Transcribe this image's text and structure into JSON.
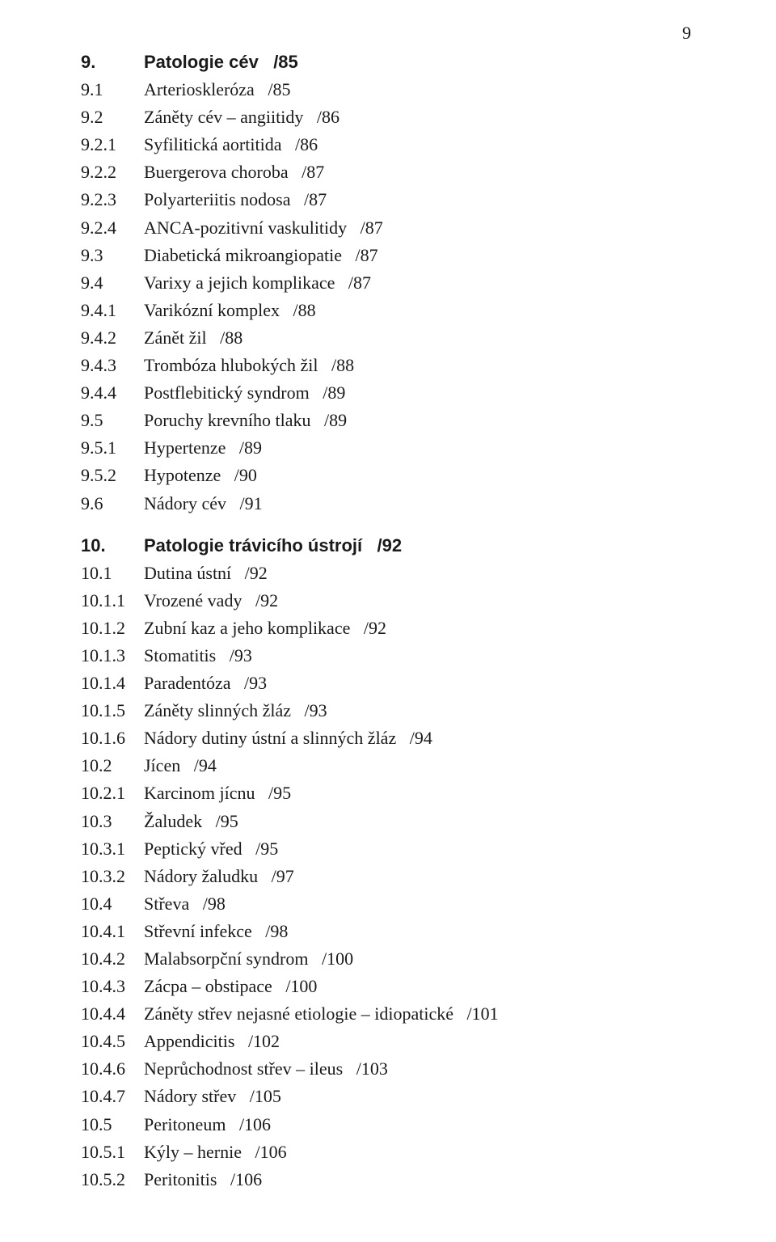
{
  "page_number": "9",
  "entries": [
    {
      "num": "9.",
      "title": "Patologie cév",
      "page": "/85",
      "bold": true
    },
    {
      "num": "9.1",
      "title": "Arterioskleróza",
      "page": "/85"
    },
    {
      "num": "9.2",
      "title": "Záněty cév – angiitidy",
      "page": "/86"
    },
    {
      "num": "9.2.1",
      "title": "Syfilitická aortitida",
      "page": "/86"
    },
    {
      "num": "9.2.2",
      "title": "Buergerova choroba",
      "page": "/87"
    },
    {
      "num": "9.2.3",
      "title": "Polyarteriitis nodosa",
      "page": "/87"
    },
    {
      "num": "9.2.4",
      "title": "ANCA-pozitivní vaskulitidy",
      "page": "/87"
    },
    {
      "num": "9.3",
      "title": "Diabetická mikroangiopatie",
      "page": "/87"
    },
    {
      "num": "9.4",
      "title": "Varixy a jejich komplikace",
      "page": "/87"
    },
    {
      "num": "9.4.1",
      "title": "Varikózní komplex",
      "page": "/88"
    },
    {
      "num": "9.4.2",
      "title": "Zánět žil",
      "page": "/88"
    },
    {
      "num": "9.4.3",
      "title": "Trombóza hlubokých žil",
      "page": "/88"
    },
    {
      "num": "9.4.4",
      "title": "Postflebitický syndrom",
      "page": "/89"
    },
    {
      "num": "9.5",
      "title": "Poruchy krevního tlaku",
      "page": "/89"
    },
    {
      "num": "9.5.1",
      "title": "Hypertenze",
      "page": "/89"
    },
    {
      "num": "9.5.2",
      "title": "Hypotenze",
      "page": "/90"
    },
    {
      "num": "9.6",
      "title": "Nádory cév",
      "page": "/91"
    },
    {
      "gap": true
    },
    {
      "num": "10.",
      "title": "Patologie trávicího ústrojí",
      "page": "/92",
      "bold": true
    },
    {
      "num": "10.1",
      "title": "Dutina ústní",
      "page": "/92"
    },
    {
      "num": "10.1.1",
      "title": "Vrozené vady",
      "page": "/92"
    },
    {
      "num": "10.1.2",
      "title": "Zubní kaz a jeho komplikace",
      "page": "/92"
    },
    {
      "num": "10.1.3",
      "title": "Stomatitis",
      "page": "/93"
    },
    {
      "num": "10.1.4",
      "title": "Paradentóza",
      "page": "/93"
    },
    {
      "num": "10.1.5",
      "title": "Záněty slinných žláz",
      "page": "/93"
    },
    {
      "num": "10.1.6",
      "title": "Nádory dutiny ústní a slinných žláz",
      "page": "/94"
    },
    {
      "num": "10.2",
      "title": "Jícen",
      "page": "/94"
    },
    {
      "num": "10.2.1",
      "title": "Karcinom jícnu",
      "page": "/95"
    },
    {
      "num": "10.3",
      "title": "Žaludek",
      "page": "/95"
    },
    {
      "num": "10.3.1",
      "title": "Peptický vřed",
      "page": "/95"
    },
    {
      "num": "10.3.2",
      "title": "Nádory žaludku",
      "page": "/97"
    },
    {
      "num": "10.4",
      "title": "Střeva",
      "page": "/98"
    },
    {
      "num": "10.4.1",
      "title": "Střevní infekce",
      "page": "/98"
    },
    {
      "num": "10.4.2",
      "title": "Malabsorpční syndrom",
      "page": "/100"
    },
    {
      "num": "10.4.3",
      "title": "Zácpa – obstipace",
      "page": "/100"
    },
    {
      "num": "10.4.4",
      "title": "Záněty střev nejasné etiologie – idiopatické",
      "page": "/101"
    },
    {
      "num": "10.4.5",
      "title": "Appendicitis",
      "page": "/102"
    },
    {
      "num": "10.4.6",
      "title": "Neprůchodnost střev – ileus",
      "page": "/103"
    },
    {
      "num": "10.4.7",
      "title": "Nádory střev",
      "page": "/105"
    },
    {
      "num": "10.5",
      "title": "Peritoneum",
      "page": "/106"
    },
    {
      "num": "10.5.1",
      "title": "Kýly – hernie",
      "page": "/106"
    },
    {
      "num": "10.5.2",
      "title": "Peritonitis",
      "page": "/106"
    }
  ]
}
